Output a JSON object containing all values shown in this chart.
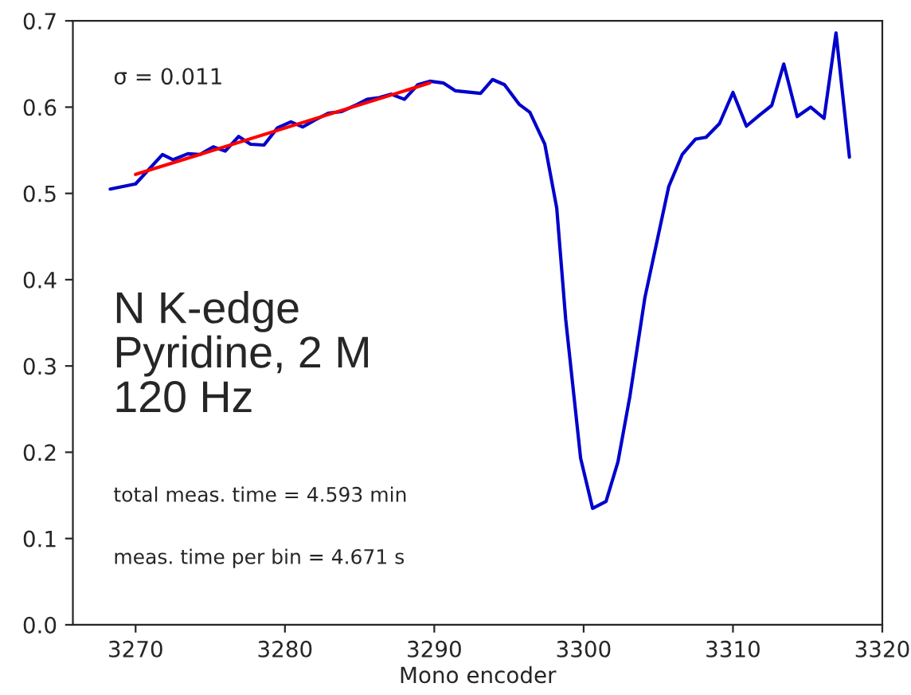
{
  "chart_data": {
    "type": "line",
    "xlabel": "Mono encoder",
    "xlim": [
      3265.8,
      3320
    ],
    "xticks": [
      3270,
      3280,
      3290,
      3300,
      3310,
      3320
    ],
    "ylim": [
      0,
      0.7
    ],
    "yticks": [
      {
        "value": 0,
        "label": "0.0"
      },
      0.1,
      0.2,
      0.3,
      0.4,
      0.5,
      0.6,
      0.7
    ],
    "grid": false,
    "legend": false,
    "series": [
      {
        "color": "#0000cc",
        "x": [
          3268.3,
          3270,
          3271.8,
          3272.5,
          3273.5,
          3274.3,
          3275.2,
          3276,
          3276.9,
          3277.7,
          3278.6,
          3279.5,
          3280.4,
          3281.2,
          3282,
          3282.9,
          3283.8,
          3284.7,
          3285.5,
          3286.3,
          3287.1,
          3288,
          3288.9,
          3289.7,
          3290.6,
          3291.4,
          3293.1,
          3293.9,
          3294.7,
          3295.7,
          3296.4,
          3297.4,
          3298.2,
          3298.8,
          3299.8,
          3300.6,
          3301.5,
          3302.3,
          3303.1,
          3304.1,
          3305.7,
          3306.6,
          3307.5,
          3308.2,
          3309.1,
          3310,
          3310.9,
          3311.8,
          3312.6,
          3313.4,
          3314.3,
          3315.2,
          3316.1,
          3316.9,
          3317.8
        ],
        "values": [
          0.505,
          0.511,
          0.545,
          0.539,
          0.546,
          0.545,
          0.554,
          0.549,
          0.566,
          0.557,
          0.556,
          0.576,
          0.583,
          0.577,
          0.585,
          0.593,
          0.595,
          0.602,
          0.609,
          0.611,
          0.615,
          0.609,
          0.626,
          0.63,
          0.628,
          0.619,
          0.616,
          0.632,
          0.626,
          0.603,
          0.594,
          0.557,
          0.483,
          0.354,
          0.193,
          0.135,
          0.143,
          0.189,
          0.265,
          0.379,
          0.508,
          0.545,
          0.563,
          0.565,
          0.581,
          0.617,
          0.578,
          0.591,
          0.602,
          0.65,
          0.589,
          0.6,
          0.587,
          0.686,
          0.542
        ]
      },
      {
        "color": "#ff0000",
        "x": [
          3270,
          3289.7
        ],
        "values": [
          0.522,
          0.628
        ]
      }
    ],
    "annotations": [
      "σ = 0.011",
      "N K-edge\nPyridine, 2 M\n120 Hz",
      "total meas. time = 4.593 min",
      "meas. time per bin = 4.671 s"
    ]
  }
}
